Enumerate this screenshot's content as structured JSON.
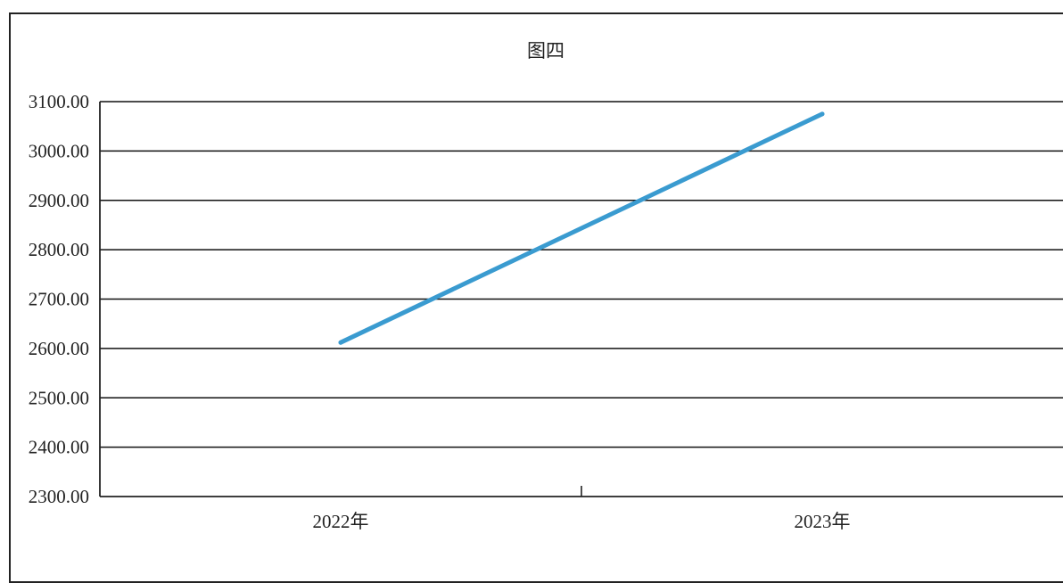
{
  "chart_data": {
    "type": "line",
    "title": "图四",
    "categories": [
      "2022年",
      "2023年"
    ],
    "series": [
      {
        "values": [
          2612,
          3075
        ]
      }
    ],
    "ylim": [
      2300,
      3100
    ],
    "yticks": [
      "3100.00",
      "3000.00",
      "2900.00",
      "2800.00",
      "2700.00",
      "2600.00",
      "2500.00",
      "2400.00",
      "2300.00"
    ],
    "xlabel": "",
    "ylabel": "",
    "grid": true,
    "legend": "none",
    "colors": {
      "line": "#3a9bd0",
      "grid": "#111111",
      "axis": "#222222"
    }
  }
}
